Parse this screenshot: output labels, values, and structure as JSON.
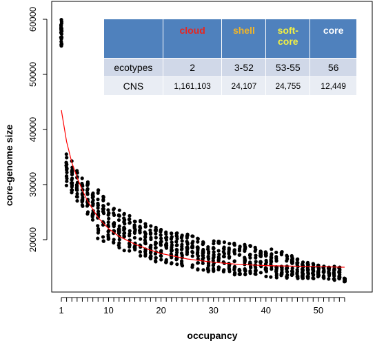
{
  "chart_data": {
    "type": "scatter",
    "xlabel": "occupancy",
    "ylabel": "core-genome size",
    "xlim": [
      1,
      55
    ],
    "ylim": [
      12000,
      61000
    ],
    "x_ticks": [
      1,
      10,
      20,
      30,
      40,
      50
    ],
    "y_ticks": [
      20000,
      30000,
      40000,
      50000,
      60000
    ],
    "grid": false,
    "point_color": "#000000",
    "fit_color": "#ff0000",
    "fit_curve": {
      "x": [
        1,
        2,
        3,
        4,
        5,
        6,
        8,
        10,
        12,
        15,
        18,
        20,
        25,
        30,
        35,
        40,
        45,
        50,
        55
      ],
      "y": [
        43500,
        37800,
        34000,
        31300,
        29000,
        27000,
        24000,
        22000,
        20600,
        19200,
        18100,
        17500,
        16500,
        15900,
        15500,
        15300,
        15200,
        15100,
        15000
      ]
    },
    "point_bands": {
      "x": [
        1,
        2,
        3,
        4,
        5,
        6,
        7,
        8,
        9,
        10,
        11,
        12,
        13,
        14,
        15,
        16,
        17,
        18,
        19,
        20,
        21,
        22,
        23,
        24,
        25,
        26,
        27,
        28,
        29,
        30,
        31,
        32,
        33,
        34,
        35,
        36,
        37,
        38,
        39,
        40,
        41,
        42,
        43,
        44,
        45,
        46,
        47,
        48,
        49,
        50,
        51,
        52,
        53,
        54,
        55
      ],
      "y_min": [
        54800,
        29800,
        28500,
        27000,
        25500,
        24500,
        23200,
        20200,
        19500,
        19500,
        19000,
        18500,
        18000,
        17800,
        17500,
        17000,
        16500,
        16200,
        16000,
        16000,
        15800,
        15500,
        15300,
        15000,
        14800,
        14800,
        14500,
        14500,
        14200,
        14000,
        14000,
        13800,
        13800,
        13600,
        13500,
        13500,
        13400,
        13400,
        13300,
        13200,
        13200,
        13100,
        13000,
        13000,
        13000,
        12900,
        12900,
        12900,
        12800,
        12800,
        12700,
        12600,
        12600,
        12500,
        12400
      ],
      "y_max": [
        60100,
        35800,
        34300,
        33200,
        31600,
        30500,
        29500,
        29100,
        27900,
        27100,
        26200,
        25600,
        25000,
        24500,
        24000,
        23500,
        23000,
        22700,
        22400,
        22200,
        22000,
        21800,
        21600,
        21300,
        21000,
        20800,
        20700,
        20500,
        20300,
        20100,
        19900,
        19800,
        19600,
        19500,
        19300,
        19200,
        19000,
        18800,
        18700,
        18500,
        18300,
        18100,
        17900,
        17700,
        17300,
        16600,
        16200,
        16000,
        15800,
        15500,
        15400,
        15300,
        15200,
        15000,
        13000
      ]
    },
    "legend_table": {
      "header": [
        "",
        "cloud",
        "shell",
        "soft-\ncore",
        "core"
      ],
      "header_colors": [
        "#4f81bd",
        "#e8251f",
        "#f0b429",
        "#f4f142",
        "#ffffff"
      ],
      "rows": [
        [
          "ecotypes",
          "2",
          "3-52",
          "53-55",
          "56"
        ],
        [
          "CNS",
          "1,161,103",
          "24,107",
          "24,755",
          "12,449"
        ]
      ]
    }
  }
}
